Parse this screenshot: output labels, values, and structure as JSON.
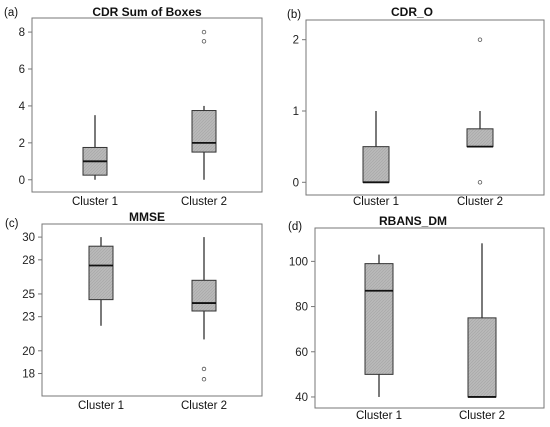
{
  "chart_data": [
    {
      "type": "box",
      "panel_label": "(a)",
      "title": "CDR Sum of Boxes",
      "categories": [
        "Cluster 1",
        "Cluster 2"
      ],
      "yticks": [
        0,
        2,
        4,
        6,
        8
      ],
      "ylim": [
        -0.5,
        8.6
      ],
      "boxes": [
        {
          "min": 0.0,
          "q1": 0.25,
          "median": 1.0,
          "q3": 1.75,
          "max": 3.5,
          "outliers": []
        },
        {
          "min": 0.0,
          "q1": 1.5,
          "median": 2.0,
          "q3": 3.75,
          "max": 4.0,
          "outliers": [
            7.5,
            8.0
          ]
        }
      ]
    },
    {
      "type": "box",
      "panel_label": "(b)",
      "title": "CDR_O",
      "categories": [
        "Cluster 1",
        "Cluster 2"
      ],
      "yticks": [
        0,
        1,
        2
      ],
      "ylim": [
        -0.15,
        2.22
      ],
      "boxes": [
        {
          "min": 0.0,
          "q1": 0.0,
          "median": 0.0,
          "q3": 0.5,
          "max": 1.0,
          "outliers": []
        },
        {
          "min": 0.5,
          "q1": 0.5,
          "median": 0.5,
          "q3": 0.75,
          "max": 1.0,
          "outliers": [
            0.0,
            2.0
          ]
        }
      ]
    },
    {
      "type": "box",
      "panel_label": "(c)",
      "title": "MMSE",
      "categories": [
        "Cluster 1",
        "Cluster 2"
      ],
      "yticks": [
        18,
        20,
        23,
        25,
        28,
        30
      ],
      "ylim": [
        16.2,
        30.8
      ],
      "boxes": [
        {
          "min": 22.2,
          "q1": 24.5,
          "median": 27.5,
          "q3": 29.2,
          "max": 30.0,
          "outliers": []
        },
        {
          "min": 21.0,
          "q1": 23.5,
          "median": 24.2,
          "q3": 26.2,
          "max": 30.0,
          "outliers": [
            17.5,
            18.4
          ]
        }
      ]
    },
    {
      "type": "box",
      "panel_label": "(d)",
      "title": "RBANS_DM",
      "categories": [
        "Cluster 1",
        "Cluster 2"
      ],
      "yticks": [
        40,
        60,
        80,
        100
      ],
      "ylim": [
        36,
        113
      ],
      "boxes": [
        {
          "min": 40,
          "q1": 50,
          "median": 87,
          "q3": 99,
          "max": 103,
          "outliers": []
        },
        {
          "min": 40,
          "q1": 40,
          "median": 40,
          "q3": 75,
          "max": 108,
          "outliers": []
        }
      ]
    }
  ],
  "style": {
    "box_fill": "#b9b9b9",
    "line": "#333333",
    "frame": "#777777"
  }
}
